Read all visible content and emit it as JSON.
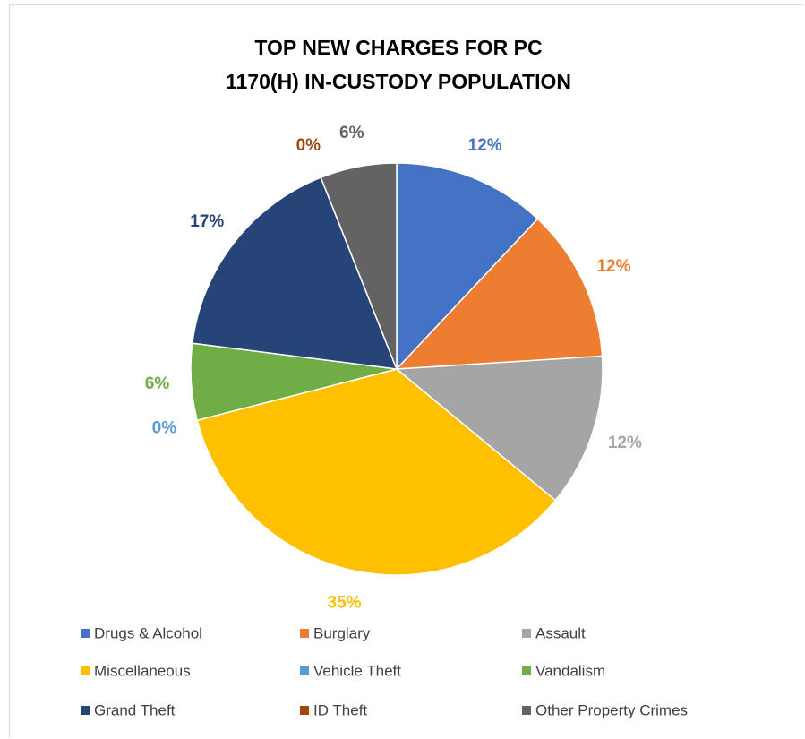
{
  "chart_data": {
    "type": "pie",
    "title": "TOP NEW CHARGES FOR PC 1170(H) IN-CUSTODY POPULATION",
    "categories": [
      "Drugs & Alcohol",
      "Burglary",
      "Assault",
      "Miscellaneous",
      "Vehicle Theft",
      "Vandalism",
      "Grand Theft",
      "ID Theft",
      "Other Property Crimes"
    ],
    "values": [
      12,
      12,
      12,
      35,
      0,
      6,
      17,
      0,
      6
    ],
    "value_labels": [
      "12%",
      "12%",
      "12%",
      "35%",
      "0%",
      "6%",
      "17%",
      "0%",
      "6%"
    ],
    "colors": [
      "#4472c4",
      "#ed7d31",
      "#a5a5a5",
      "#ffc000",
      "#5b9bd5",
      "#70ad47",
      "#264478",
      "#9e480e",
      "#636363"
    ],
    "legend": "bottom"
  }
}
